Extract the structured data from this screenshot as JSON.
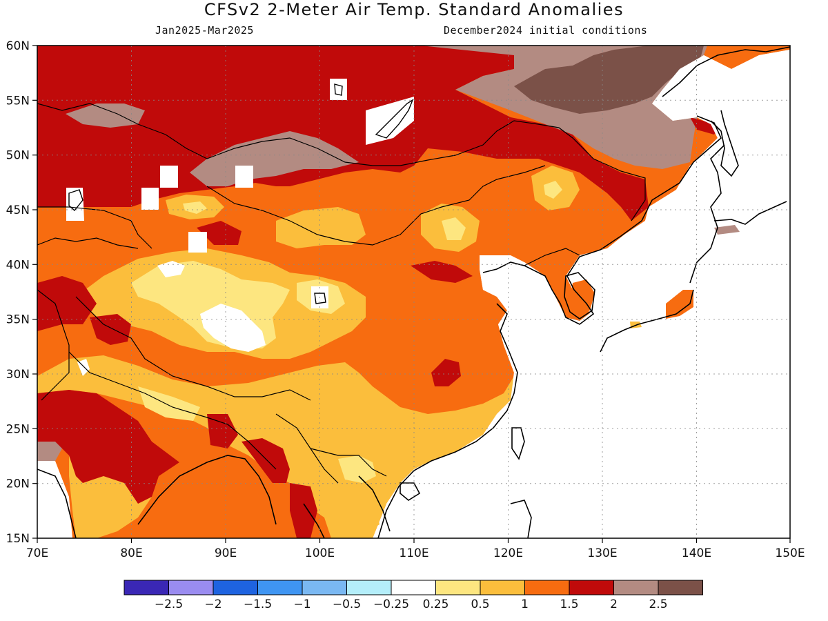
{
  "header": {
    "title": "CFSv2 2-Meter Air Temp. Standard Anomalies",
    "period": "Jan2025-Mar2025",
    "init": "December2024 initial conditions"
  },
  "map": {
    "lon_range": [
      70,
      150
    ],
    "lat_range": [
      15,
      60
    ],
    "grid": true,
    "x_ticks": [
      "70E",
      "80E",
      "90E",
      "100E",
      "110E",
      "120E",
      "130E",
      "140E",
      "150E"
    ],
    "y_ticks": [
      "60N",
      "55N",
      "50N",
      "45N",
      "40N",
      "35N",
      "30N",
      "25N",
      "20N",
      "15N"
    ]
  },
  "legend": {
    "labels": [
      "-2.5",
      "-2",
      "-1.5",
      "-1",
      "-0.5",
      "-0.25",
      "0.25",
      "0.5",
      "1",
      "1.5",
      "2",
      "2.5"
    ],
    "colors": [
      "#3a27b5",
      "#9a8cf0",
      "#1e63e0",
      "#3f95f2",
      "#7ab8f2",
      "#b4eefa",
      "#ffffff",
      "#fde680",
      "#fbbe3c",
      "#f76c10",
      "#c00a0a",
      "#b38b82",
      "#7b5148"
    ]
  }
}
